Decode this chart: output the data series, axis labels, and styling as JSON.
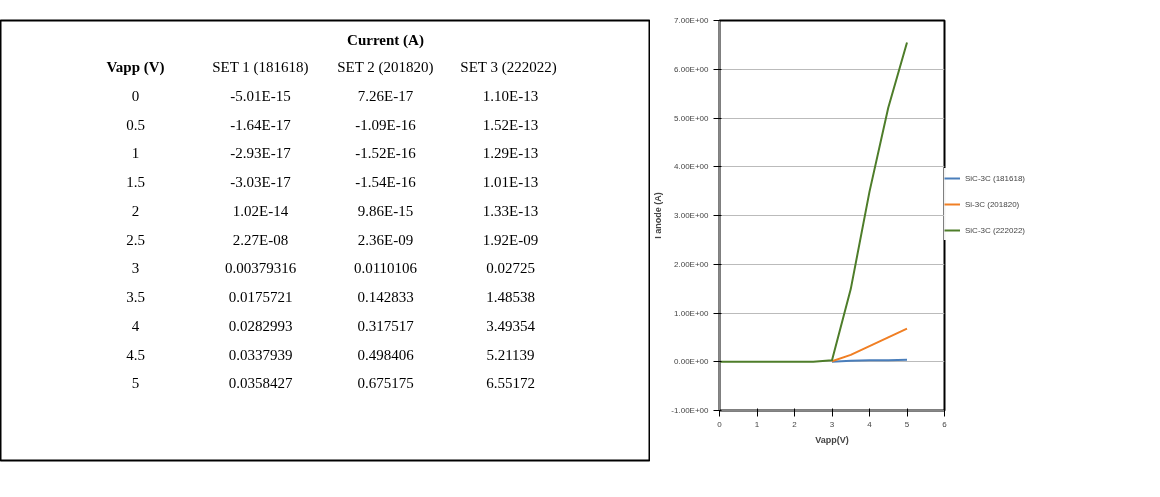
{
  "chart_data": [
    {
      "type": "heatmap",
      "title": "Current (A)",
      "ylabel": "Vapp (V)",
      "categories": [
        "SET 1 (181618)",
        "SET 2 (201820)",
        "SET 3  (222022)"
      ],
      "y_categories": [
        "0",
        "0.5",
        "1",
        "1.5",
        "2",
        "2.5",
        "3",
        "3.5",
        "4",
        "4.5",
        "5"
      ],
      "cells": [
        [
          -5.01e-15,
          7.26e-17,
          1.1e-13
        ],
        [
          -1.64e-17,
          -1.09e-16,
          1.52e-13
        ],
        [
          -2.93e-17,
          -1.52e-16,
          1.29e-13
        ],
        [
          -3.03e-17,
          -1.54e-16,
          1.01e-13
        ],
        [
          1.02e-14,
          9.86e-15,
          1.33e-13
        ],
        [
          2.27e-08,
          2.36e-09,
          1.92e-09
        ],
        [
          0.00379316,
          0.0110106,
          0.02725
        ],
        [
          0.0175721,
          0.142833,
          1.48538
        ],
        [
          0.0282993,
          0.317517,
          3.49354
        ],
        [
          0.0337939,
          0.498406,
          5.21139
        ],
        [
          0.0358427,
          0.675175,
          6.55172
        ]
      ],
      "cell_labels": [
        [
          "-5.01E-15",
          "7.26E-17",
          "1.10E-13"
        ],
        [
          "-1.64E-17",
          "-1.09E-16",
          "1.52E-13"
        ],
        [
          "-2.93E-17",
          "-1.52E-16",
          "1.29E-13"
        ],
        [
          "-3.03E-17",
          "-1.54E-16",
          "1.01E-13"
        ],
        [
          "1.02E-14",
          "9.86E-15",
          "1.33E-13"
        ],
        [
          "2.27E-08",
          "2.36E-09",
          "1.92E-09"
        ],
        [
          "0.00379316",
          "0.0110106",
          "0.02725"
        ],
        [
          "0.0175721",
          "0.142833",
          "1.48538"
        ],
        [
          "0.0282993",
          "0.317517",
          "3.49354"
        ],
        [
          "0.0337939",
          "0.498406",
          "5.21139"
        ],
        [
          "0.0358427",
          "0.675175",
          "6.55172"
        ]
      ]
    },
    {
      "type": "line",
      "xlabel": "Vapp(V)",
      "ylabel": "I anode (A)",
      "x": [
        0,
        0.5,
        1,
        1.5,
        2,
        2.5,
        3,
        3.5,
        4,
        4.5,
        5
      ],
      "series": [
        {
          "name": "SiC-3C (181618)",
          "color": "#4a7ebb",
          "values": [
            null,
            null,
            null,
            null,
            null,
            null,
            0,
            0.02,
            0.03,
            0.03,
            0.04
          ]
        },
        {
          "name": "Si-3C (201820)",
          "color": "#f07f24",
          "values": [
            null,
            null,
            null,
            null,
            null,
            null,
            0.01,
            0.14,
            0.32,
            0.5,
            0.68
          ]
        },
        {
          "name": "SiC-3C (222022)",
          "color": "#4e7d2a",
          "values": [
            0,
            0,
            0,
            0,
            0,
            0,
            0.03,
            1.49,
            3.49,
            5.21,
            6.55
          ]
        }
      ],
      "xlim": [
        0,
        6
      ],
      "xticks": [
        0,
        1,
        2,
        3,
        4,
        5,
        6
      ],
      "ylim": [
        -1,
        7
      ],
      "yticks": [
        {
          "value": -1,
          "label": "-1.00E+00"
        },
        {
          "value": 0,
          "label": "0.00E+00"
        },
        {
          "value": 1,
          "label": "1.00E+00"
        },
        {
          "value": 2,
          "label": "2.00E+00"
        },
        {
          "value": 3,
          "label": "3.00E+00"
        },
        {
          "value": 4,
          "label": "4.00E+00"
        },
        {
          "value": 5,
          "label": "5.00E+00"
        },
        {
          "value": 6,
          "label": "6.00E+00"
        },
        {
          "value": 7,
          "label": "7.00E+00"
        }
      ],
      "grid": "y",
      "legend": "right",
      "marker": "none",
      "line_style": "solid"
    }
  ]
}
